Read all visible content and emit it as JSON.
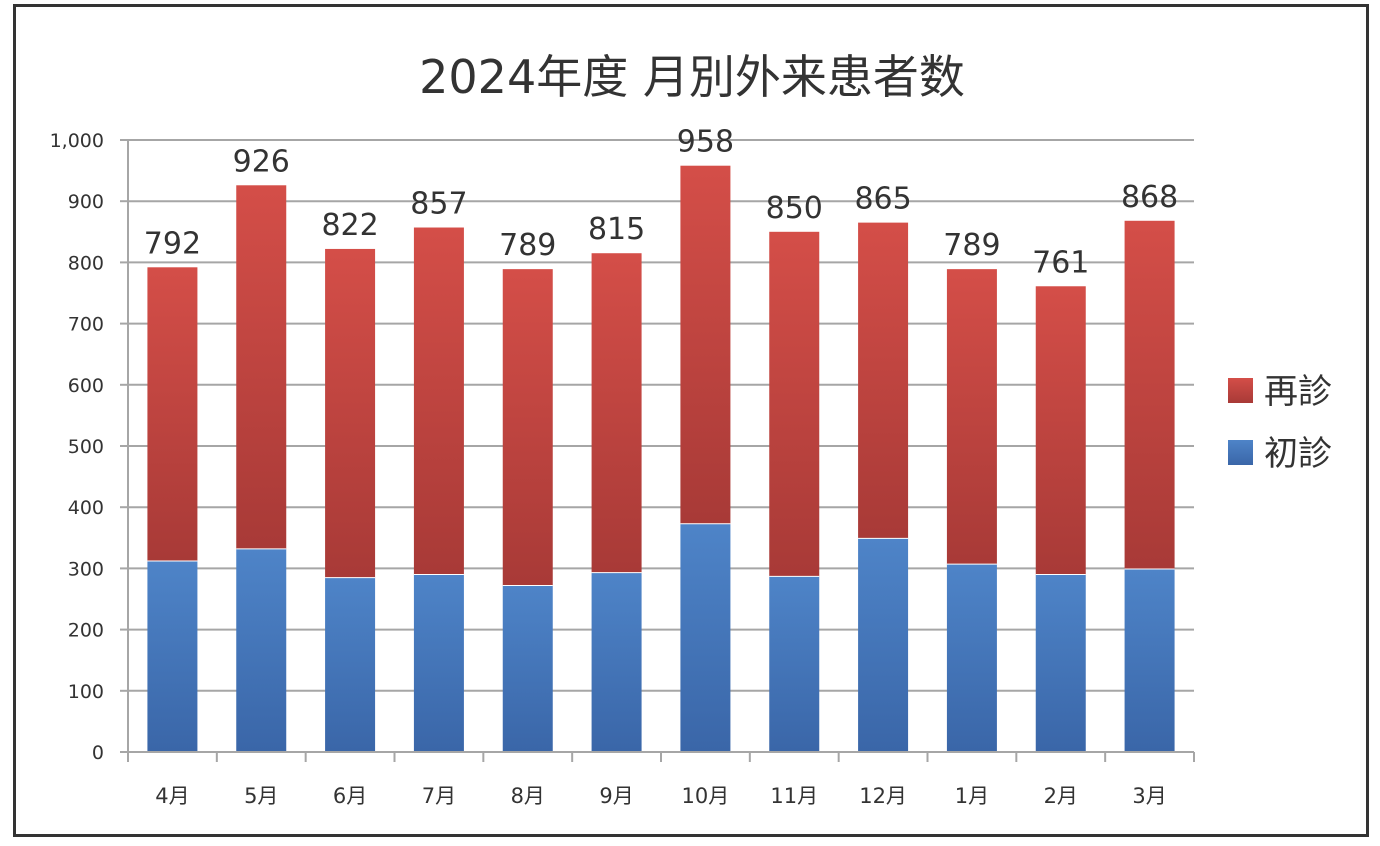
{
  "chart_data": {
    "type": "bar",
    "stacked": true,
    "title": "2024年度 月別外来患者数",
    "xlabel": "",
    "ylabel": "",
    "ylim": [
      0,
      1000
    ],
    "yticks": [
      "0",
      "100",
      "200",
      "300",
      "400",
      "500",
      "600",
      "700",
      "800",
      "900",
      "1,000"
    ],
    "grid": true,
    "legend_position": "right",
    "categories": [
      "4月",
      "5月",
      "6月",
      "7月",
      "8月",
      "9月",
      "10月",
      "11月",
      "12月",
      "1月",
      "2月",
      "3月"
    ],
    "series": [
      {
        "name": "初診",
        "color": "#4a7ec0",
        "values": [
          312,
          332,
          285,
          290,
          272,
          293,
          373,
          287,
          349,
          307,
          290,
          299
        ]
      },
      {
        "name": "再診",
        "color": "#c94a45",
        "values": [
          480,
          594,
          537,
          567,
          517,
          522,
          585,
          563,
          516,
          482,
          471,
          569
        ]
      }
    ],
    "totals": [
      "792",
      "926",
      "822",
      "857",
      "789",
      "815",
      "958",
      "850",
      "865",
      "789",
      "761",
      "868"
    ],
    "legend_order": [
      "再診",
      "初診"
    ]
  }
}
